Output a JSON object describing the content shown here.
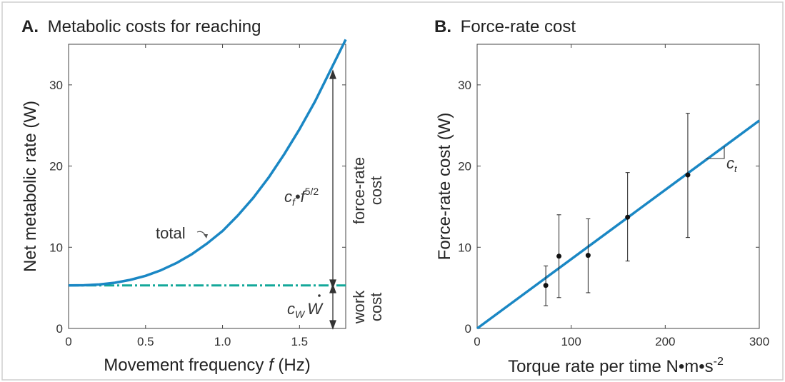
{
  "chart_data": [
    {
      "panel": "A.",
      "title": "Metabolic costs for reaching",
      "type": "line",
      "xlabel_prefix": "Movement frequency ",
      "xlabel_var": "f",
      "xlabel_suffix": " (Hz)",
      "ylabel": "Net metabolic rate (W)",
      "xlim": [
        0,
        1.8
      ],
      "ylim": [
        0,
        35
      ],
      "xticks": [
        0,
        0.5,
        1.0,
        1.5
      ],
      "xtick_labels": [
        "0",
        "0.5",
        "1.0",
        "1.5"
      ],
      "yticks": [
        0,
        10,
        20,
        30
      ],
      "ytick_labels": [
        "0",
        "10",
        "20",
        "30"
      ],
      "series": [
        {
          "name": "total",
          "style": "solid",
          "color": "#1a87c4",
          "equation": "5.3 + 6.7 * f^2.5",
          "x": [
            0,
            0.1,
            0.2,
            0.3,
            0.4,
            0.5,
            0.6,
            0.7,
            0.8,
            0.9,
            1.0,
            1.1,
            1.2,
            1.3,
            1.4,
            1.5,
            1.6,
            1.7,
            1.8
          ],
          "y": [
            5.3,
            5.32,
            5.42,
            5.63,
            5.98,
            6.48,
            7.17,
            8.05,
            9.14,
            10.47,
            12.0,
            13.93,
            16.1,
            18.6,
            21.44,
            24.54,
            27.93,
            31.76,
            35.58
          ]
        },
        {
          "name": "work cost",
          "style": "dash-dot",
          "color": "#14a89a",
          "x": [
            0,
            1.8
          ],
          "y": [
            5.3,
            5.3
          ]
        }
      ],
      "annotations": {
        "total_label": "total",
        "force_rate_term_c": "c",
        "force_rate_term_sub": "f",
        "force_rate_term_rest": "•f",
        "force_rate_term_exp": "5/2",
        "force_rate_side_1": "force-rate",
        "force_rate_side_2": "cost",
        "work_term_c": "c",
        "work_term_sub": "W",
        "work_term_w": "W",
        "work_side_1": "work",
        "work_side_2": "cost"
      }
    },
    {
      "panel": "B.",
      "title": "Force-rate cost",
      "type": "scatter",
      "xlabel": "Torque rate per time N•m•s",
      "xlabel_exp": "-2",
      "ylabel": "Force-rate cost (W)",
      "xlim": [
        0,
        300
      ],
      "ylim": [
        0,
        35
      ],
      "xticks": [
        0,
        100,
        200,
        300
      ],
      "xtick_labels": [
        "0",
        "100",
        "200",
        "300"
      ],
      "yticks": [
        0,
        10,
        20,
        30
      ],
      "ytick_labels": [
        "0",
        "10",
        "20",
        "30"
      ],
      "points": [
        {
          "x": 73,
          "y": 5.3,
          "lo": 2.8,
          "hi": 7.7
        },
        {
          "x": 87,
          "y": 8.9,
          "lo": 3.8,
          "hi": 14.0
        },
        {
          "x": 118,
          "y": 9.0,
          "lo": 4.4,
          "hi": 13.5
        },
        {
          "x": 160,
          "y": 13.7,
          "lo": 8.3,
          "hi": 19.2
        },
        {
          "x": 224,
          "y": 18.9,
          "lo": 11.2,
          "hi": 26.5
        }
      ],
      "fit": {
        "x": [
          0,
          300
        ],
        "y": [
          0,
          25.6
        ],
        "color": "#1a87c4"
      },
      "slope_label": "c",
      "slope_label_sub": "t"
    }
  ]
}
